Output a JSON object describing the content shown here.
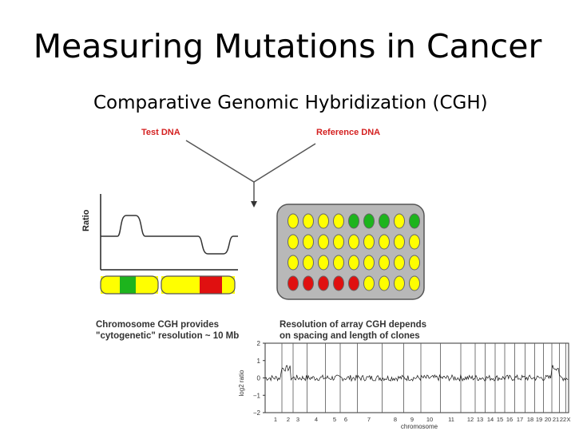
{
  "slide": {
    "title": "Measuring Mutations in Cancer",
    "subtitle": "Comparative Genomic Hybridization (CGH)"
  },
  "diagram": {
    "test_label": "Test DNA",
    "reference_label": "Reference DNA",
    "ratio_axis_label": "Ratio",
    "chromosome_caption_1": "Chromosome CGH provides",
    "chromosome_caption_2": "\"cytogenetic\" resolution ~ 10 Mb",
    "array_caption_1": "Resolution of array CGH depends",
    "array_caption_2": "on spacing and length of clones",
    "array_grid": [
      [
        "yellow",
        "yellow",
        "yellow",
        "yellow",
        "green",
        "green",
        "green",
        "yellow",
        "green"
      ],
      [
        "yellow",
        "yellow",
        "yellow",
        "yellow",
        "yellow",
        "yellow",
        "yellow",
        "yellow",
        "yellow"
      ],
      [
        "yellow",
        "yellow",
        "yellow",
        "yellow",
        "yellow",
        "yellow",
        "yellow",
        "yellow",
        "yellow"
      ],
      [
        "red",
        "red",
        "red",
        "red",
        "red",
        "yellow",
        "yellow",
        "yellow",
        "yellow"
      ]
    ],
    "chromosome_bands": [
      "yellow",
      "green",
      "yellow",
      "yellow",
      "red",
      "yellow"
    ],
    "colors": {
      "yellow": "#ffff00",
      "green": "#1db41d",
      "red": "#e01010",
      "array_bg": "#b8b8b8"
    }
  },
  "chart_data": {
    "type": "scatter",
    "xlabel": "chromosome",
    "ylabel": "log2 ratio",
    "ylim": [
      -2,
      2
    ],
    "yticks": [
      "2",
      "1",
      "0",
      "−1",
      "−2"
    ],
    "chromosomes": [
      "1",
      "2",
      "3",
      "4",
      "5",
      "6",
      "7",
      "8",
      "9",
      "10",
      "11",
      "12",
      "13",
      "14",
      "15",
      "16",
      "17",
      "18",
      "19",
      "20",
      "21",
      "22",
      "X"
    ]
  }
}
